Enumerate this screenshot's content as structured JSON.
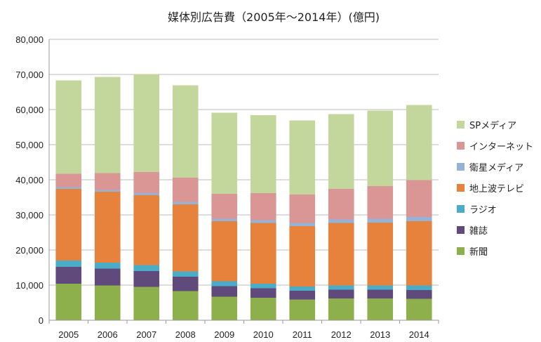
{
  "chart_data": {
    "type": "bar",
    "stacked": true,
    "title": "媒体別広告費（2005年～2014年）(億円)",
    "xlabel": "",
    "ylabel": "",
    "ylim": [
      0,
      80000
    ],
    "yticks": [
      0,
      10000,
      20000,
      30000,
      40000,
      50000,
      60000,
      70000,
      80000
    ],
    "ytick_labels": [
      "0",
      "10,000",
      "20,000",
      "30,000",
      "40,000",
      "50,000",
      "60,000",
      "70,000",
      "80,000"
    ],
    "grid": true,
    "legend": "right",
    "categories": [
      "2005",
      "2006",
      "2007",
      "2008",
      "2009",
      "2010",
      "2011",
      "2012",
      "2013",
      "2014"
    ],
    "series": [
      {
        "name": "新聞",
        "color": "#8db04c",
        "values": [
          10400,
          9900,
          9500,
          8300,
          6700,
          6400,
          5900,
          6200,
          6200,
          6100
        ]
      },
      {
        "name": "雑誌",
        "color": "#604a7b",
        "values": [
          4800,
          4800,
          4500,
          4100,
          3000,
          2700,
          2500,
          2500,
          2500,
          2500
        ]
      },
      {
        "name": "ラジオ",
        "color": "#4aacc6",
        "values": [
          1800,
          1700,
          1700,
          1500,
          1400,
          1300,
          1200,
          1200,
          1200,
          1300
        ]
      },
      {
        "name": "地上波テレビ",
        "color": "#e6823c",
        "values": [
          20400,
          20200,
          19900,
          19100,
          17100,
          17300,
          17200,
          17800,
          17900,
          18300
        ]
      },
      {
        "name": "衛星メディア",
        "color": "#95b3d7",
        "values": [
          500,
          500,
          600,
          700,
          700,
          800,
          900,
          1000,
          1100,
          1200
        ]
      },
      {
        "name": "インターネット",
        "color": "#d99694",
        "values": [
          3800,
          4800,
          6000,
          6900,
          7100,
          7700,
          8100,
          8700,
          9300,
          10500
        ]
      },
      {
        "name": "SPメディア",
        "color": "#c3d69b",
        "values": [
          26600,
          27400,
          27900,
          26300,
          23100,
          22200,
          21100,
          21300,
          21500,
          21400
        ]
      }
    ]
  }
}
